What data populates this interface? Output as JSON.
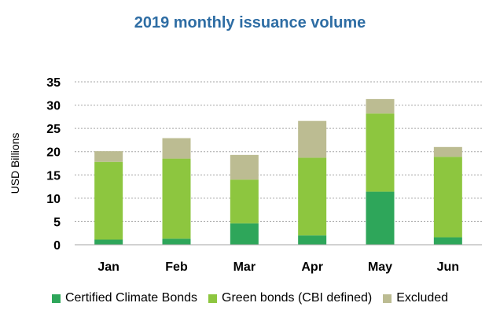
{
  "chart_data": {
    "type": "bar",
    "stacked": true,
    "title": "2019 monthly issuance volume",
    "xlabel": "",
    "ylabel": "USD Billions",
    "ylim": [
      0,
      35
    ],
    "yticks": [
      "0",
      "5",
      "10",
      "15",
      "20",
      "25",
      "30",
      "35"
    ],
    "grid": "horizontal dotted",
    "legend_position": "bottom",
    "categories": [
      "Jan",
      "Feb",
      "Mar",
      "Apr",
      "May",
      "Jun"
    ],
    "series": [
      {
        "name": "Certified Climate Bonds",
        "color": "#2ea65a",
        "values": [
          1.1,
          1.3,
          4.6,
          2.0,
          11.4,
          1.6
        ]
      },
      {
        "name": "Green bonds (CBI defined)",
        "color": "#8dc63f",
        "values": [
          16.7,
          17.2,
          9.4,
          16.7,
          16.8,
          17.3
        ]
      },
      {
        "name": "Excluded",
        "color": "#bcbc92",
        "values": [
          2.3,
          4.4,
          5.3,
          7.9,
          3.1,
          2.1
        ]
      }
    ]
  }
}
